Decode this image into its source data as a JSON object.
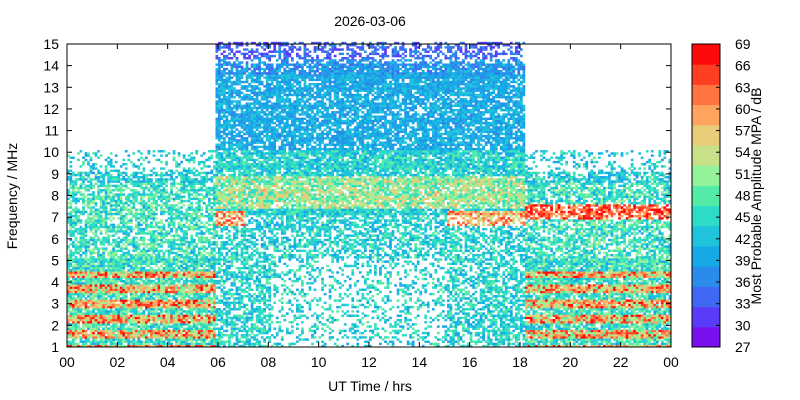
{
  "chart_data": {
    "type": "heatmap",
    "title": "2026-03-06",
    "xlabel": "UT Time / hrs",
    "ylabel": "Frequency / MHz",
    "colorbar_label": "Most Probable Amplitude MPA / dB",
    "xlim": [
      0,
      24
    ],
    "ylim": [
      1,
      15
    ],
    "x_ticks": [
      "00",
      "02",
      "04",
      "06",
      "08",
      "10",
      "12",
      "14",
      "16",
      "18",
      "20",
      "22",
      "00"
    ],
    "y_ticks": [
      "1",
      "2",
      "3",
      "4",
      "5",
      "6",
      "7",
      "8",
      "9",
      "10",
      "11",
      "12",
      "13",
      "14",
      "15"
    ],
    "colorbar": {
      "range": [
        27,
        69
      ],
      "ticks": [
        "27",
        "30",
        "33",
        "36",
        "39",
        "42",
        "45",
        "48",
        "51",
        "54",
        "57",
        "60",
        "63",
        "66",
        "69"
      ],
      "colors": [
        "#7a10f0",
        "#5a3cf8",
        "#3f68f5",
        "#2a8cea",
        "#17a8e6",
        "#1fc4dc",
        "#2cdcc6",
        "#54eaa8",
        "#94f29a",
        "#c8e088",
        "#e9cc78",
        "#ffa45e",
        "#ff7440",
        "#ff3f24",
        "#ff0a0a"
      ]
    },
    "coverage": {
      "high_band_mhz": [
        10,
        15
      ],
      "high_band_hours": [
        5.8,
        18.1
      ],
      "low_band_mhz": [
        1,
        10
      ]
    },
    "grid": false
  }
}
